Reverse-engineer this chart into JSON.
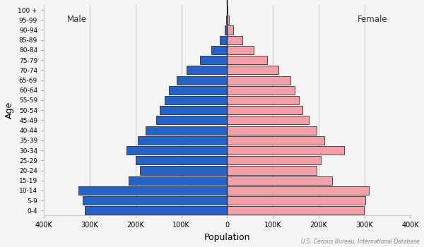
{
  "xlabel": "Population",
  "ylabel": "Age",
  "source": "U.S. Census Bureau, International Database",
  "age_groups": [
    "0-4",
    "5-9",
    "10-14",
    "15-19",
    "20-24",
    "25-29",
    "30-34",
    "35-39",
    "40-44",
    "45-49",
    "50-54",
    "55-59",
    "60-64",
    "65-69",
    "70-74",
    "75-79",
    "80-84",
    "85-89",
    "90-94",
    "95-99",
    "100 +"
  ],
  "male": [
    310000,
    315000,
    325000,
    215000,
    190000,
    200000,
    220000,
    195000,
    178000,
    155000,
    147000,
    137000,
    127000,
    110000,
    88000,
    60000,
    35000,
    16000,
    5000,
    1500,
    400
  ],
  "female": [
    298000,
    302000,
    310000,
    230000,
    195000,
    205000,
    255000,
    213000,
    195000,
    178000,
    165000,
    157000,
    148000,
    138000,
    112000,
    88000,
    58000,
    33000,
    13000,
    4000,
    1200
  ],
  "male_color": "#2563c7",
  "female_color": "#f4a0a8",
  "male_edgecolor": "#111111",
  "female_edgecolor": "#111111",
  "background_color": "#f5f5f5",
  "grid_color": "#cccccc",
  "xlim": 400000,
  "bar_height": 0.85,
  "male_label": "Male",
  "female_label": "Female",
  "tick_vals": [
    -400000,
    -300000,
    -200000,
    -100000,
    0,
    100000,
    200000,
    300000,
    400000
  ],
  "tick_labels": [
    "400K",
    "300K",
    "200K",
    "100K",
    "0",
    "100K",
    "200K",
    "300K",
    "400K"
  ]
}
